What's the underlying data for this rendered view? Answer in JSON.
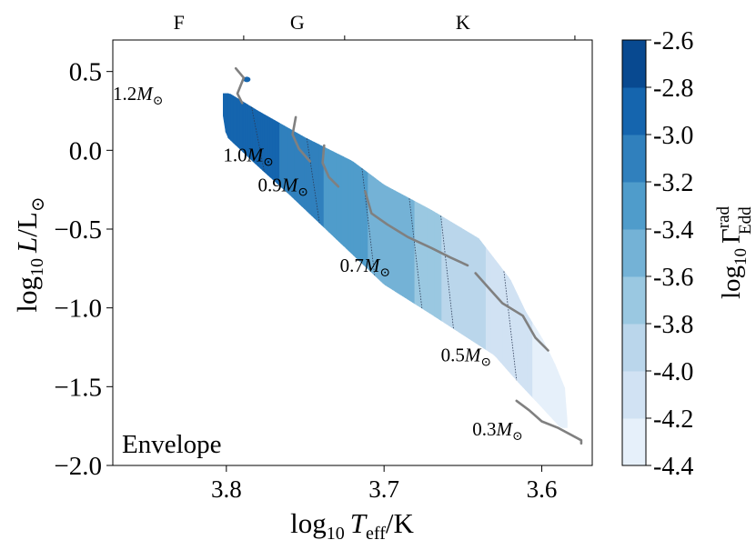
{
  "chart_data": {
    "type": "heatmap",
    "panel_label": "Envelope",
    "xlabel": "log₁₀ T_eff/K",
    "xlabel_parts": {
      "prefix": "log",
      "sub": "10",
      "var": "T",
      "var_sub": "eff",
      "suffix": "/K"
    },
    "ylabel_parts": {
      "prefix": "log",
      "sub": "10",
      "var": "L",
      "suffix": "/L",
      "sym": "⊙"
    },
    "xlim": [
      3.872,
      3.568
    ],
    "ylim": [
      -2.0,
      0.7
    ],
    "x_ticks": [
      3.8,
      3.7,
      3.6
    ],
    "x_tick_labels": [
      "3.8",
      "3.7",
      "3.6"
    ],
    "y_ticks": [
      0.5,
      0.0,
      -0.5,
      -1.0,
      -1.5,
      -2.0
    ],
    "y_tick_labels": [
      "0.5",
      "0.0",
      "−0.5",
      "−1.0",
      "−1.5",
      "−2.0"
    ],
    "top_axis": {
      "labels": [
        "F",
        "G",
        "K"
      ],
      "label_positions": [
        3.83,
        3.755,
        3.65
      ],
      "boundaries": [
        3.789,
        3.725,
        3.579
      ]
    },
    "colorbar": {
      "label_parts": {
        "prefix": "log",
        "sub": "10",
        "var": "Γ",
        "sup": "rad",
        "var_sub": "Edd"
      },
      "levels": [
        -4.4,
        -4.2,
        -4.0,
        -3.8,
        -3.6,
        -3.4,
        -3.2,
        -3.0,
        -2.8,
        -2.6
      ],
      "tick_labels": [
        "-4.4",
        "-4.2",
        "-4.0",
        "-3.8",
        "-3.6",
        "-3.4",
        "-3.2",
        "-3.0",
        "-2.8",
        "-2.6"
      ],
      "colors": [
        "#e6f0fa",
        "#d1e2f3",
        "#bad6eb",
        "#9ac8e1",
        "#74b2d6",
        "#4f9ccb",
        "#3080bd",
        "#1565ae",
        "#084990"
      ]
    },
    "band": {
      "upper": [
        [
          3.798,
          0.36
        ],
        [
          3.78,
          0.25
        ],
        [
          3.75,
          0.08
        ],
        [
          3.72,
          -0.07
        ],
        [
          3.7,
          -0.22
        ],
        [
          3.67,
          -0.38
        ],
        [
          3.64,
          -0.56
        ],
        [
          3.62,
          -0.82
        ],
        [
          3.61,
          -1.03
        ],
        [
          3.6,
          -1.19
        ],
        [
          3.592,
          -1.35
        ],
        [
          3.585,
          -1.52
        ],
        [
          3.584,
          -1.72
        ]
      ],
      "lower": [
        [
          3.588,
          -1.76
        ],
        [
          3.6,
          -1.63
        ],
        [
          3.615,
          -1.47
        ],
        [
          3.63,
          -1.3
        ],
        [
          3.65,
          -1.17
        ],
        [
          3.67,
          -1.04
        ],
        [
          3.7,
          -0.85
        ],
        [
          3.72,
          -0.66
        ],
        [
          3.74,
          -0.47
        ],
        [
          3.76,
          -0.28
        ],
        [
          3.78,
          -0.1
        ],
        [
          3.8,
          0.09
        ],
        [
          3.802,
          0.22
        ]
      ],
      "level_x": [
        3.802,
        3.78,
        3.745,
        3.71,
        3.68,
        3.66,
        3.62,
        3.59
      ],
      "level_values": [
        -2.8,
        -2.9,
        -3.15,
        -3.4,
        -3.6,
        -3.85,
        -4.1,
        -4.3
      ],
      "blob": {
        "x": 3.787,
        "y": 0.45,
        "value": -2.9
      }
    },
    "tracks": [
      {
        "label": "1.2",
        "label_x": 3.84,
        "label_y": 0.32,
        "points": [
          [
            3.794,
            0.52
          ],
          [
            3.789,
            0.46
          ],
          [
            3.793,
            0.36
          ],
          [
            3.79,
            0.3
          ]
        ]
      },
      {
        "label": "1.0",
        "label_x": 3.77,
        "label_y": -0.07,
        "points": [
          [
            3.756,
            0.21
          ],
          [
            3.758,
            0.1
          ],
          [
            3.754,
            0.01
          ],
          [
            3.747,
            -0.07
          ]
        ]
      },
      {
        "label": "0.9",
        "label_x": 3.748,
        "label_y": -0.26,
        "points": [
          [
            3.738,
            0.03
          ],
          [
            3.739,
            -0.08
          ],
          [
            3.735,
            -0.17
          ],
          [
            3.729,
            -0.23
          ]
        ]
      },
      {
        "label": "0.7",
        "label_x": 3.696,
        "label_y": -0.77,
        "points": [
          [
            3.712,
            -0.26
          ],
          [
            3.708,
            -0.4
          ],
          [
            3.698,
            -0.47
          ],
          [
            3.685,
            -0.55
          ],
          [
            3.67,
            -0.62
          ],
          [
            3.658,
            -0.68
          ],
          [
            3.647,
            -0.73
          ]
        ]
      },
      {
        "label": "0.5",
        "label_x": 3.632,
        "label_y": -1.34,
        "points": [
          [
            3.642,
            -0.78
          ],
          [
            3.634,
            -0.87
          ],
          [
            3.625,
            -0.97
          ],
          [
            3.612,
            -1.05
          ],
          [
            3.604,
            -1.19
          ],
          [
            3.596,
            -1.27
          ]
        ]
      },
      {
        "label": "0.3",
        "label_x": 3.612,
        "label_y": -1.81,
        "points": [
          [
            3.616,
            -1.59
          ],
          [
            3.608,
            -1.65
          ],
          [
            3.6,
            -1.72
          ],
          [
            3.59,
            -1.76
          ],
          [
            3.575,
            -1.84
          ],
          [
            3.575,
            -1.86
          ]
        ]
      }
    ]
  }
}
